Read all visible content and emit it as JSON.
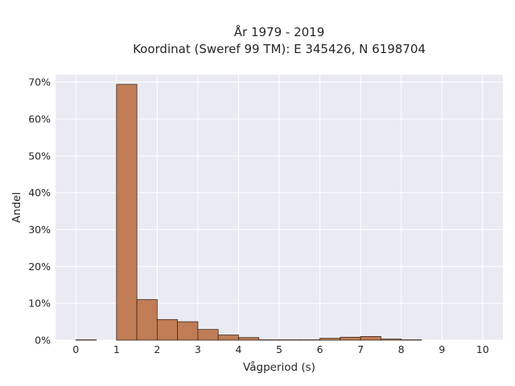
{
  "chart_data": {
    "type": "bar",
    "title": "År 1979 - 2019",
    "subtitle": "Koordinat (Sweref 99 TM): E 345426, N 6198704",
    "xlabel": "Vågperiod (s)",
    "ylabel": "Andel",
    "xlim": [
      -0.5,
      10.5
    ],
    "ylim": [
      0,
      0.72
    ],
    "x_ticks": [
      0,
      1,
      2,
      3,
      4,
      5,
      6,
      7,
      8,
      9,
      10
    ],
    "x_tick_labels": [
      "0",
      "1",
      "2",
      "3",
      "4",
      "5",
      "6",
      "7",
      "8",
      "9",
      "10"
    ],
    "y_ticks": [
      0,
      0.1,
      0.2,
      0.3,
      0.4,
      0.5,
      0.6,
      0.7
    ],
    "y_tick_labels": [
      "0%",
      "10%",
      "20%",
      "30%",
      "40%",
      "50%",
      "60%",
      "70%"
    ],
    "grid": true,
    "colors": {
      "bar_fill": "#c07c55",
      "bar_edge": "#3a2a1e",
      "plot_background": "#eaeaf2",
      "grid": "#ffffff"
    },
    "bins": [
      {
        "start": 0.0,
        "end": 0.5,
        "value": 0.001
      },
      {
        "start": 0.5,
        "end": 1.0,
        "value": 0.0
      },
      {
        "start": 1.0,
        "end": 1.5,
        "value": 0.694
      },
      {
        "start": 1.5,
        "end": 2.0,
        "value": 0.11
      },
      {
        "start": 2.0,
        "end": 2.5,
        "value": 0.056
      },
      {
        "start": 2.5,
        "end": 3.0,
        "value": 0.05
      },
      {
        "start": 3.0,
        "end": 3.5,
        "value": 0.029
      },
      {
        "start": 3.5,
        "end": 4.0,
        "value": 0.014
      },
      {
        "start": 4.0,
        "end": 4.5,
        "value": 0.007
      },
      {
        "start": 4.5,
        "end": 5.0,
        "value": 0.001
      },
      {
        "start": 5.0,
        "end": 5.5,
        "value": 0.001
      },
      {
        "start": 5.5,
        "end": 6.0,
        "value": 0.001
      },
      {
        "start": 6.0,
        "end": 6.5,
        "value": 0.005
      },
      {
        "start": 6.5,
        "end": 7.0,
        "value": 0.008
      },
      {
        "start": 7.0,
        "end": 7.5,
        "value": 0.01
      },
      {
        "start": 7.5,
        "end": 8.0,
        "value": 0.003
      },
      {
        "start": 8.0,
        "end": 8.5,
        "value": 0.001
      }
    ]
  }
}
